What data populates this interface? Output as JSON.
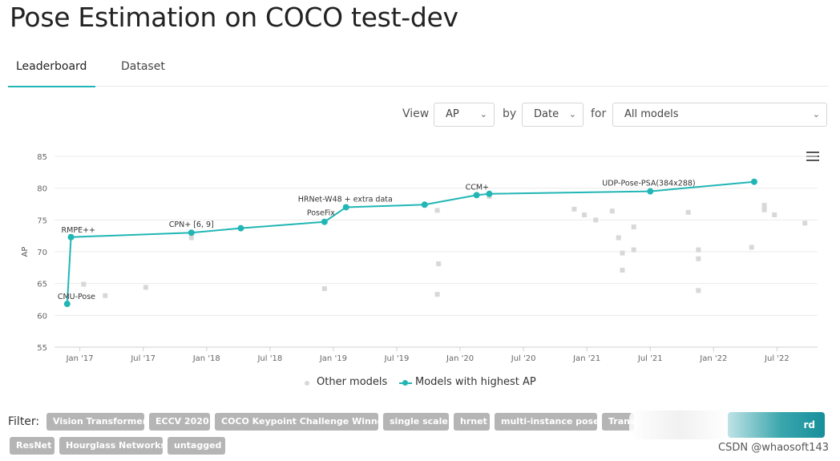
{
  "page": {
    "title": "Pose Estimation on COCO test-dev"
  },
  "tabs": [
    {
      "label": "Leaderboard",
      "active": true
    },
    {
      "label": "Dataset",
      "active": false
    }
  ],
  "controls": {
    "view_label": "View",
    "view_value": "AP",
    "by_label": "by",
    "by_value": "Date",
    "for_label": "for",
    "for_value": "All models"
  },
  "chart_data": {
    "type": "line",
    "title": "",
    "xlabel": "",
    "ylabel": "AP",
    "ylim": [
      55,
      85
    ],
    "yticks": [
      55,
      60,
      65,
      70,
      75,
      80,
      85
    ],
    "xlim": [
      2016.8,
      2022.82
    ],
    "xticks": [
      {
        "value": 2017.0,
        "label": "Jan '17"
      },
      {
        "value": 2017.5,
        "label": "Jul '17"
      },
      {
        "value": 2018.0,
        "label": "Jan '18"
      },
      {
        "value": 2018.5,
        "label": "Jul '18"
      },
      {
        "value": 2019.0,
        "label": "Jan '19"
      },
      {
        "value": 2019.5,
        "label": "Jul '19"
      },
      {
        "value": 2020.0,
        "label": "Jan '20"
      },
      {
        "value": 2020.5,
        "label": "Jul '20"
      },
      {
        "value": 2021.0,
        "label": "Jan '21"
      },
      {
        "value": 2021.5,
        "label": "Jul '21"
      },
      {
        "value": 2022.0,
        "label": "Jan '22"
      },
      {
        "value": 2022.5,
        "label": "Jul '22"
      }
    ],
    "series": [
      {
        "name": "Models with highest AP",
        "color": "#21b6b5",
        "points": [
          {
            "x": 2016.9,
            "y": 61.8,
            "label": "CMU-Pose"
          },
          {
            "x": 2016.93,
            "y": 72.3,
            "label": "RMPE++"
          },
          {
            "x": 2017.88,
            "y": 73.0,
            "label": "CPN+ [6, 9]"
          },
          {
            "x": 2018.27,
            "y": 73.7,
            "label": ""
          },
          {
            "x": 2018.93,
            "y": 74.7,
            "label": "PoseFix"
          },
          {
            "x": 2019.1,
            "y": 77.0,
            "label": "HRNet-W48 + extra data"
          },
          {
            "x": 2019.72,
            "y": 77.4,
            "label": ""
          },
          {
            "x": 2020.13,
            "y": 78.9,
            "label": "CCM+"
          },
          {
            "x": 2020.23,
            "y": 79.1,
            "label": ""
          },
          {
            "x": 2021.5,
            "y": 79.5,
            "label": "UDP-Pose-PSA(384x288)"
          },
          {
            "x": 2022.32,
            "y": 81.0,
            "label": ""
          }
        ]
      },
      {
        "name": "Other models",
        "color": "#d8d8d8",
        "points": [
          {
            "x": 2017.03,
            "y": 64.9
          },
          {
            "x": 2017.2,
            "y": 63.1
          },
          {
            "x": 2017.52,
            "y": 64.4
          },
          {
            "x": 2017.88,
            "y": 72.2
          },
          {
            "x": 2018.93,
            "y": 64.2
          },
          {
            "x": 2019.82,
            "y": 76.5
          },
          {
            "x": 2019.83,
            "y": 68.1
          },
          {
            "x": 2019.82,
            "y": 63.3
          },
          {
            "x": 2020.23,
            "y": 78.7
          },
          {
            "x": 2020.9,
            "y": 76.7
          },
          {
            "x": 2020.98,
            "y": 75.8
          },
          {
            "x": 2021.07,
            "y": 75.0
          },
          {
            "x": 2021.2,
            "y": 76.4
          },
          {
            "x": 2021.25,
            "y": 72.2
          },
          {
            "x": 2021.28,
            "y": 69.8
          },
          {
            "x": 2021.28,
            "y": 67.1
          },
          {
            "x": 2021.37,
            "y": 73.9
          },
          {
            "x": 2021.37,
            "y": 70.3
          },
          {
            "x": 2021.8,
            "y": 76.2
          },
          {
            "x": 2021.88,
            "y": 70.3
          },
          {
            "x": 2021.88,
            "y": 68.9
          },
          {
            "x": 2021.88,
            "y": 63.9
          },
          {
            "x": 2022.3,
            "y": 70.7
          },
          {
            "x": 2022.4,
            "y": 77.3
          },
          {
            "x": 2022.4,
            "y": 76.6
          },
          {
            "x": 2022.48,
            "y": 75.8
          },
          {
            "x": 2022.72,
            "y": 74.5
          }
        ]
      }
    ],
    "legend": [
      "Other models",
      "Models with highest AP"
    ],
    "legend_position": "bottom"
  },
  "legend": {
    "other": "Other models",
    "highest": "Models with highest AP"
  },
  "filter": {
    "label": "Filter:",
    "chips": [
      "Vision Transformer",
      "ECCV 2020",
      "COCO Keypoint Challenge Winner",
      "single scale",
      "hrnet",
      "multi-instance pose",
      "Trans",
      "ResNet",
      "Hourglass Networks",
      "untagged"
    ],
    "button_label": "rd"
  },
  "watermark": "CSDN @whaosoft143",
  "icons": {
    "menu": "hamburger-menu-icon",
    "caret": "chevron-down-icon"
  }
}
